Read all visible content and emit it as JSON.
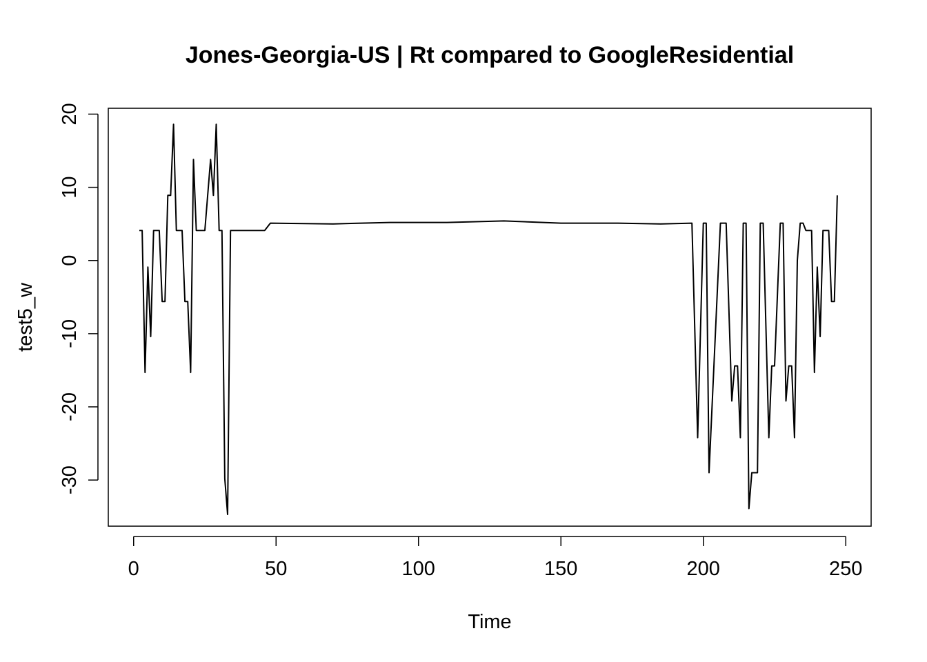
{
  "chart_data": {
    "type": "line",
    "title": "Jones-Georgia-US | Rt compared to GoogleResidential",
    "xlabel": "Time",
    "ylabel": "test5_w",
    "xlim": [
      -8.9,
      258.9
    ],
    "ylim": [
      -36.3,
      20.8
    ],
    "x_ticks": [
      0,
      50,
      100,
      150,
      200,
      250
    ],
    "y_ticks": [
      -30,
      -20,
      -10,
      0,
      10,
      20
    ],
    "grid": false,
    "legend": "none",
    "line_color": "#000000",
    "series": [
      {
        "points": [
          [
            2,
            4.1
          ],
          [
            3,
            4.1
          ],
          [
            4,
            -15.3
          ],
          [
            5,
            -0.9
          ],
          [
            6,
            -10.4
          ],
          [
            7,
            4.1
          ],
          [
            8,
            4.1
          ],
          [
            9,
            4.1
          ],
          [
            10,
            -5.6
          ],
          [
            11,
            -5.6
          ],
          [
            12,
            8.9
          ],
          [
            13,
            8.9
          ],
          [
            14,
            18.6
          ],
          [
            15,
            4.1
          ],
          [
            16,
            4.1
          ],
          [
            17,
            4.1
          ],
          [
            18,
            -5.6
          ],
          [
            19,
            -5.6
          ],
          [
            20,
            -15.3
          ],
          [
            21,
            13.8
          ],
          [
            22,
            4.1
          ],
          [
            23,
            4.1
          ],
          [
            24,
            4.1
          ],
          [
            25,
            4.1
          ],
          [
            26,
            8.9
          ],
          [
            27,
            13.8
          ],
          [
            28,
            8.9
          ],
          [
            29,
            18.6
          ],
          [
            30,
            4.1
          ],
          [
            31,
            4.1
          ],
          [
            32,
            -29.8
          ],
          [
            33,
            -34.7
          ],
          [
            34,
            4.1
          ],
          [
            40,
            4.1
          ],
          [
            46,
            4.1
          ],
          [
            48,
            5.1
          ],
          [
            70,
            5.0
          ],
          [
            90,
            5.2
          ],
          [
            110,
            5.2
          ],
          [
            130,
            5.4
          ],
          [
            150,
            5.1
          ],
          [
            170,
            5.1
          ],
          [
            185,
            5.0
          ],
          [
            196,
            5.1
          ],
          [
            198,
            -24.2
          ],
          [
            200,
            5.1
          ],
          [
            201,
            5.1
          ],
          [
            202,
            -29.0
          ],
          [
            206,
            5.1
          ],
          [
            208,
            5.1
          ],
          [
            210,
            -19.2
          ],
          [
            211,
            -14.4
          ],
          [
            212,
            -14.4
          ],
          [
            213,
            -24.2
          ],
          [
            214,
            5.1
          ],
          [
            215,
            5.1
          ],
          [
            216,
            -33.9
          ],
          [
            217,
            -29.0
          ],
          [
            218,
            -29.0
          ],
          [
            219,
            -29.0
          ],
          [
            220,
            5.1
          ],
          [
            221,
            5.1
          ],
          [
            223,
            -24.2
          ],
          [
            224,
            -14.4
          ],
          [
            225,
            -14.4
          ],
          [
            227,
            5.1
          ],
          [
            228,
            5.1
          ],
          [
            229,
            -19.2
          ],
          [
            230,
            -14.4
          ],
          [
            231,
            -14.4
          ],
          [
            232,
            -24.2
          ],
          [
            233,
            0.0
          ],
          [
            234,
            5.1
          ],
          [
            235,
            5.1
          ],
          [
            236,
            4.1
          ],
          [
            237,
            4.1
          ],
          [
            238,
            4.1
          ],
          [
            239,
            -15.3
          ],
          [
            240,
            -0.9
          ],
          [
            241,
            -10.4
          ],
          [
            242,
            4.1
          ],
          [
            243,
            4.1
          ],
          [
            244,
            4.1
          ],
          [
            245,
            -5.6
          ],
          [
            246,
            -5.6
          ],
          [
            247,
            8.9
          ]
        ]
      }
    ]
  }
}
